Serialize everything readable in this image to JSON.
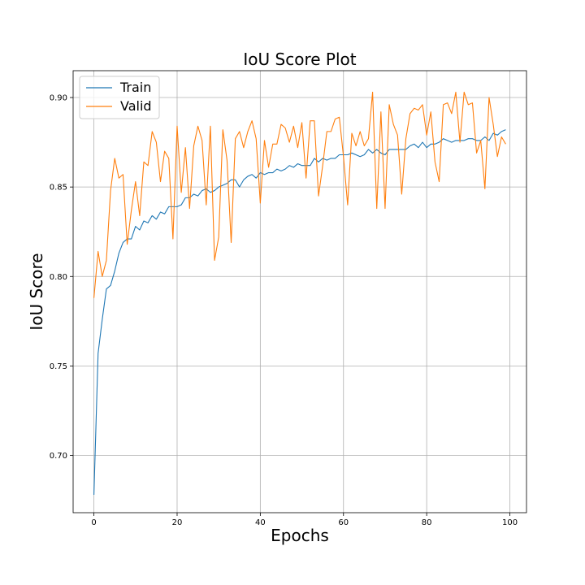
{
  "chart_data": {
    "type": "line",
    "title": "IoU Score Plot",
    "xlabel": "Epochs",
    "ylabel": "IoU Score",
    "xlim": [
      -5,
      104
    ],
    "ylim": [
      0.668,
      0.915
    ],
    "xticks": [
      0,
      20,
      40,
      60,
      80,
      100
    ],
    "yticks": [
      0.7,
      0.75,
      0.8,
      0.85,
      0.9
    ],
    "grid": true,
    "legend_position": "top-left",
    "series": [
      {
        "name": "Train",
        "color": "#1f77b4",
        "x": [
          0,
          1,
          2,
          3,
          4,
          5,
          6,
          7,
          8,
          9,
          10,
          11,
          12,
          13,
          14,
          15,
          16,
          17,
          18,
          19,
          20,
          21,
          22,
          23,
          24,
          25,
          26,
          27,
          28,
          29,
          30,
          31,
          32,
          33,
          34,
          35,
          36,
          37,
          38,
          39,
          40,
          41,
          42,
          43,
          44,
          45,
          46,
          47,
          48,
          49,
          50,
          51,
          52,
          53,
          54,
          55,
          56,
          57,
          58,
          59,
          60,
          61,
          62,
          63,
          64,
          65,
          66,
          67,
          68,
          69,
          70,
          71,
          72,
          73,
          74,
          75,
          76,
          77,
          78,
          79,
          80,
          81,
          82,
          83,
          84,
          85,
          86,
          87,
          88,
          89,
          90,
          91,
          92,
          93,
          94,
          95,
          96,
          97,
          98,
          99
        ],
        "y": [
          0.678,
          0.757,
          0.776,
          0.793,
          0.795,
          0.803,
          0.813,
          0.819,
          0.821,
          0.821,
          0.828,
          0.826,
          0.831,
          0.83,
          0.834,
          0.832,
          0.836,
          0.835,
          0.839,
          0.839,
          0.839,
          0.84,
          0.844,
          0.844,
          0.846,
          0.845,
          0.848,
          0.849,
          0.847,
          0.848,
          0.85,
          0.851,
          0.852,
          0.854,
          0.854,
          0.85,
          0.854,
          0.856,
          0.857,
          0.855,
          0.858,
          0.857,
          0.858,
          0.858,
          0.86,
          0.859,
          0.86,
          0.862,
          0.861,
          0.863,
          0.862,
          0.862,
          0.862,
          0.866,
          0.864,
          0.866,
          0.865,
          0.866,
          0.866,
          0.868,
          0.868,
          0.868,
          0.869,
          0.868,
          0.867,
          0.868,
          0.871,
          0.869,
          0.871,
          0.869,
          0.868,
          0.871,
          0.871,
          0.871,
          0.871,
          0.871,
          0.873,
          0.874,
          0.872,
          0.875,
          0.872,
          0.874,
          0.874,
          0.875,
          0.877,
          0.876,
          0.875,
          0.876,
          0.876,
          0.876,
          0.877,
          0.877,
          0.876,
          0.876,
          0.878,
          0.876,
          0.88,
          0.879,
          0.881,
          0.882
        ]
      },
      {
        "name": "Valid",
        "color": "#ff7f0e",
        "x": [
          0,
          1,
          2,
          3,
          4,
          5,
          6,
          7,
          8,
          9,
          10,
          11,
          12,
          13,
          14,
          15,
          16,
          17,
          18,
          19,
          20,
          21,
          22,
          23,
          24,
          25,
          26,
          27,
          28,
          29,
          30,
          31,
          32,
          33,
          34,
          35,
          36,
          37,
          38,
          39,
          40,
          41,
          42,
          43,
          44,
          45,
          46,
          47,
          48,
          49,
          50,
          51,
          52,
          53,
          54,
          55,
          56,
          57,
          58,
          59,
          60,
          61,
          62,
          63,
          64,
          65,
          66,
          67,
          68,
          69,
          70,
          71,
          72,
          73,
          74,
          75,
          76,
          77,
          78,
          79,
          80,
          81,
          82,
          83,
          84,
          85,
          86,
          87,
          88,
          89,
          90,
          91,
          92,
          93,
          94,
          95,
          96,
          97,
          98,
          99
        ],
        "y": [
          0.788,
          0.814,
          0.8,
          0.809,
          0.848,
          0.866,
          0.855,
          0.857,
          0.818,
          0.837,
          0.853,
          0.834,
          0.864,
          0.862,
          0.881,
          0.875,
          0.853,
          0.87,
          0.866,
          0.821,
          0.884,
          0.847,
          0.872,
          0.838,
          0.873,
          0.884,
          0.876,
          0.84,
          0.884,
          0.809,
          0.822,
          0.882,
          0.865,
          0.819,
          0.877,
          0.881,
          0.872,
          0.881,
          0.887,
          0.877,
          0.841,
          0.876,
          0.861,
          0.874,
          0.874,
          0.885,
          0.883,
          0.875,
          0.884,
          0.872,
          0.886,
          0.855,
          0.887,
          0.887,
          0.845,
          0.862,
          0.881,
          0.881,
          0.888,
          0.889,
          0.867,
          0.84,
          0.88,
          0.873,
          0.881,
          0.873,
          0.877,
          0.903,
          0.838,
          0.892,
          0.838,
          0.896,
          0.885,
          0.879,
          0.846,
          0.877,
          0.891,
          0.894,
          0.893,
          0.896,
          0.879,
          0.892,
          0.864,
          0.853,
          0.896,
          0.897,
          0.891,
          0.903,
          0.875,
          0.903,
          0.896,
          0.897,
          0.869,
          0.876,
          0.849,
          0.9,
          0.885,
          0.867,
          0.878,
          0.874
        ]
      }
    ]
  }
}
